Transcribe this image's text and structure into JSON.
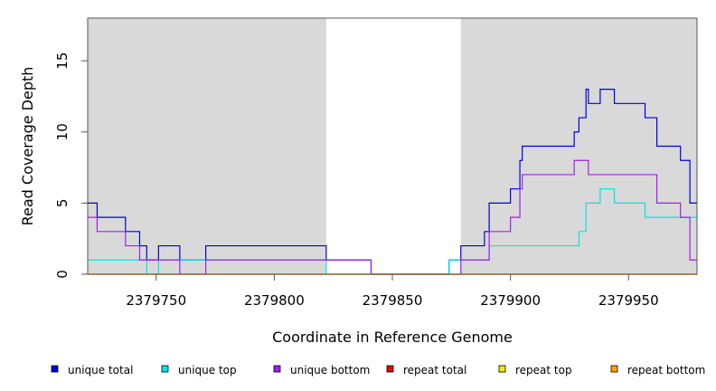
{
  "chart_data": {
    "type": "line",
    "step": true,
    "xlabel": "Coordinate in Reference Genome",
    "ylabel": "Read Coverage Depth",
    "xlim": [
      2379721,
      2379979
    ],
    "ylim": [
      0,
      18
    ],
    "x_ticks": [
      2379750,
      2379800,
      2379850,
      2379900,
      2379950
    ],
    "x_tick_labels": [
      "2379750",
      "2379800",
      "2379850",
      "2379900",
      "2379950"
    ],
    "y_ticks": [
      0,
      5,
      10,
      15
    ],
    "y_tick_labels": [
      "0",
      "5",
      "10",
      "15"
    ],
    "shaded_regions": [
      {
        "x0": 2379721,
        "x1": 2379822,
        "color": "#d9d9d9"
      },
      {
        "x0": 2379879,
        "x1": 2379979,
        "color": "#d9d9d9"
      }
    ],
    "legend_position": "bottom",
    "series": [
      {
        "name": "unique total",
        "color": "#0000dd",
        "points": [
          [
            2379721,
            5
          ],
          [
            2379725,
            4
          ],
          [
            2379737,
            3
          ],
          [
            2379743,
            2
          ],
          [
            2379746,
            1
          ],
          [
            2379751,
            2
          ],
          [
            2379760,
            1
          ],
          [
            2379771,
            2
          ],
          [
            2379822,
            1
          ],
          [
            2379841,
            0
          ],
          [
            2379874,
            1
          ],
          [
            2379879,
            2
          ],
          [
            2379889,
            3
          ],
          [
            2379891,
            5
          ],
          [
            2379900,
            6
          ],
          [
            2379904,
            8
          ],
          [
            2379905,
            9
          ],
          [
            2379927,
            10
          ],
          [
            2379929,
            11
          ],
          [
            2379932,
            13
          ],
          [
            2379933,
            12
          ],
          [
            2379938,
            13
          ],
          [
            2379944,
            12
          ],
          [
            2379957,
            11
          ],
          [
            2379962,
            9
          ],
          [
            2379972,
            8
          ],
          [
            2379976,
            5
          ],
          [
            2379979,
            5
          ]
        ]
      },
      {
        "name": "unique top",
        "color": "#00e5e5",
        "points": [
          [
            2379721,
            1
          ],
          [
            2379746,
            0
          ],
          [
            2379751,
            1
          ],
          [
            2379822,
            0
          ],
          [
            2379874,
            1
          ],
          [
            2379891,
            2
          ],
          [
            2379929,
            3
          ],
          [
            2379932,
            5
          ],
          [
            2379938,
            6
          ],
          [
            2379944,
            5
          ],
          [
            2379957,
            4
          ],
          [
            2379979,
            4
          ]
        ]
      },
      {
        "name": "unique bottom",
        "color": "#a020f0",
        "points": [
          [
            2379721,
            4
          ],
          [
            2379725,
            3
          ],
          [
            2379737,
            2
          ],
          [
            2379743,
            1
          ],
          [
            2379760,
            0
          ],
          [
            2379771,
            1
          ],
          [
            2379822,
            1
          ],
          [
            2379841,
            0
          ],
          [
            2379879,
            1
          ],
          [
            2379891,
            3
          ],
          [
            2379900,
            4
          ],
          [
            2379904,
            6
          ],
          [
            2379905,
            7
          ],
          [
            2379927,
            8
          ],
          [
            2379933,
            7
          ],
          [
            2379962,
            5
          ],
          [
            2379972,
            4
          ],
          [
            2379976,
            1
          ],
          [
            2379979,
            1
          ]
        ]
      },
      {
        "name": "repeat total",
        "color": "#ee0000",
        "points": [
          [
            2379721,
            0
          ],
          [
            2379979,
            0
          ]
        ]
      },
      {
        "name": "repeat top",
        "color": "#eeee00",
        "points": [
          [
            2379721,
            0
          ],
          [
            2379979,
            0
          ]
        ]
      },
      {
        "name": "repeat bottom",
        "color": "#ffa500",
        "points": [
          [
            2379721,
            0
          ],
          [
            2379979,
            0
          ]
        ]
      }
    ]
  }
}
